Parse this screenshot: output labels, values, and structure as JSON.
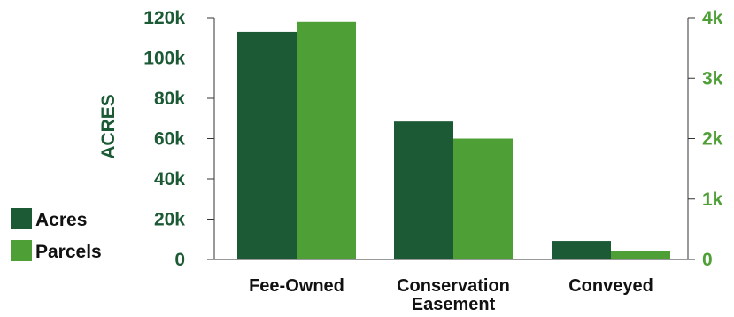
{
  "chart_data": {
    "type": "bar",
    "categories": [
      "Fee-Owned",
      "Conservation Easement",
      "Conveyed"
    ],
    "category_label_lines": [
      [
        "Fee-Owned"
      ],
      [
        "Conservation",
        "Easement"
      ],
      [
        "Conveyed"
      ]
    ],
    "series": [
      {
        "name": "Acres",
        "axis": "left",
        "color": "#1b5a34",
        "values": [
          113000,
          68500,
          9200
        ]
      },
      {
        "name": "Parcels",
        "axis": "right",
        "color": "#4e9f35",
        "values": [
          3930,
          2000,
          145
        ]
      }
    ],
    "ylabel": "ACRES",
    "ylim": [
      0,
      120000
    ],
    "y_ticks": [
      0,
      20000,
      40000,
      60000,
      80000,
      100000,
      120000
    ],
    "y_tick_labels": [
      "0",
      "20k",
      "40k",
      "60k",
      "80k",
      "100k",
      "120k"
    ],
    "y2lim": [
      0,
      4000
    ],
    "y2_ticks": [
      0,
      1000,
      2000,
      3000,
      4000
    ],
    "y2_tick_labels": [
      "0",
      "1k",
      "2k",
      "3k",
      "4k"
    ],
    "left_axis_color": "#1b5a34",
    "right_axis_color": "#4e9f35",
    "legend_position": "bottom-left",
    "grid": false
  }
}
